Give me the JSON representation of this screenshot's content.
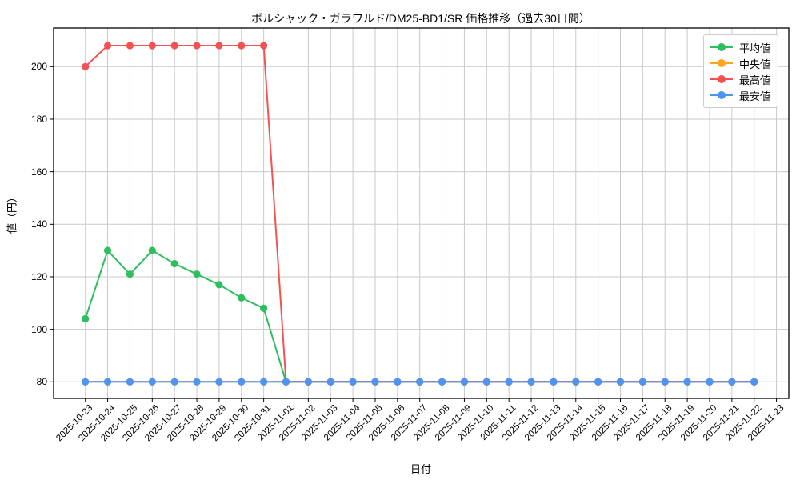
{
  "chart_data": {
    "type": "line",
    "title": "ボルシャック・ガラワルド/DM25-BD1/SR 価格推移（過去30日間）",
    "xlabel": "日付",
    "ylabel": "値（円）",
    "grid": true,
    "legend_position": "upper right",
    "y_ticks": [
      80,
      100,
      120,
      140,
      160,
      180,
      200
    ],
    "ylim": [
      73.6,
      214.4
    ],
    "dates": [
      "2025-10-23",
      "2025-10-24",
      "2025-10-25",
      "2025-10-26",
      "2025-10-27",
      "2025-10-28",
      "2025-10-29",
      "2025-10-30",
      "2025-10-31",
      "2025-11-01",
      "2025-11-02",
      "2025-11-03",
      "2025-11-04",
      "2025-11-05",
      "2025-11-06",
      "2025-11-07",
      "2025-11-08",
      "2025-11-09",
      "2025-11-10",
      "2025-11-11",
      "2025-11-12",
      "2025-11-13",
      "2025-11-14",
      "2025-11-15",
      "2025-11-16",
      "2025-11-17",
      "2025-11-18",
      "2025-11-19",
      "2025-11-20",
      "2025-11-21",
      "2025-11-22",
      "2025-11-23"
    ],
    "series": [
      {
        "key": "avg",
        "name": "平均値",
        "color": "#2ebd5f",
        "values": [
          104,
          130,
          121,
          130,
          125,
          121,
          117,
          112,
          108,
          80,
          80,
          80,
          80,
          80,
          80,
          80,
          80,
          80,
          80,
          80,
          80,
          80,
          80,
          80,
          80,
          80,
          80,
          80,
          80,
          80,
          80,
          null
        ]
      },
      {
        "key": "median",
        "name": "中央値",
        "color": "#ffa420",
        "values": [
          80,
          80,
          80,
          80,
          80,
          80,
          80,
          80,
          80,
          80,
          80,
          80,
          80,
          80,
          80,
          80,
          80,
          80,
          80,
          80,
          80,
          80,
          80,
          80,
          80,
          80,
          80,
          80,
          80,
          80,
          80,
          null
        ]
      },
      {
        "key": "max",
        "name": "最高値",
        "color": "#f45252",
        "values": [
          200,
          208,
          208,
          208,
          208,
          208,
          208,
          208,
          208,
          80,
          80,
          80,
          80,
          80,
          80,
          80,
          80,
          80,
          80,
          80,
          80,
          80,
          80,
          80,
          80,
          80,
          80,
          80,
          80,
          80,
          80,
          null
        ]
      },
      {
        "key": "min",
        "name": "最安値",
        "color": "#4f94f2",
        "values": [
          80,
          80,
          80,
          80,
          80,
          80,
          80,
          80,
          80,
          80,
          80,
          80,
          80,
          80,
          80,
          80,
          80,
          80,
          80,
          80,
          80,
          80,
          80,
          80,
          80,
          80,
          80,
          80,
          80,
          80,
          80,
          null
        ]
      }
    ]
  },
  "style": {
    "grid_color": "#c9c9c9",
    "spine_color": "#000000",
    "background": "#ffffff",
    "legend_border": "#cccccc"
  }
}
